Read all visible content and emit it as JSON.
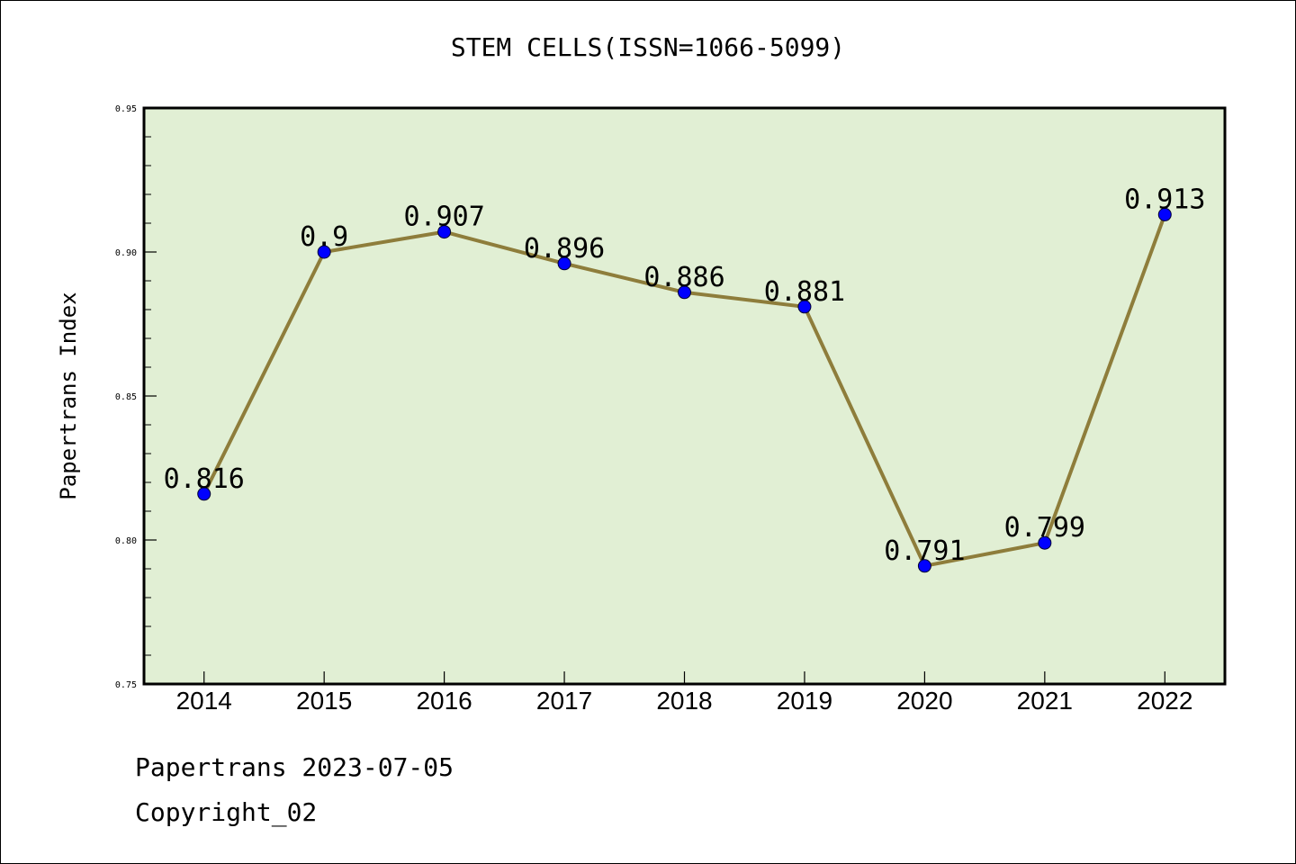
{
  "page": {
    "footer_source": "Papertrans 2023-07-05",
    "footer_copyright": "Copyright_02"
  },
  "colors": {
    "plot_bg": "#e1efd4",
    "line": "#8e7d3b",
    "marker": "#0000ff",
    "axis": "#000000"
  },
  "chart_data": {
    "type": "line",
    "title": "STEM CELLS(ISSN=1066-5099)",
    "xlabel": "",
    "ylabel": "Papertrans Index",
    "categories": [
      "2014",
      "2015",
      "2016",
      "2017",
      "2018",
      "2019",
      "2020",
      "2021",
      "2022"
    ],
    "series": [
      {
        "values": [
          0.816,
          0.9,
          0.907,
          0.896,
          0.886,
          0.881,
          0.791,
          0.799,
          0.913
        ],
        "labels": [
          "0.816",
          "0.9",
          "0.907",
          "0.896",
          "0.886",
          "0.881",
          "0.791",
          "0.799",
          "0.913"
        ]
      }
    ],
    "ylim": [
      0.75,
      0.95
    ],
    "yticks": [
      "0.75",
      "0.80",
      "0.85",
      "0.90",
      "0.95"
    ],
    "grid": false,
    "legend": "none"
  }
}
